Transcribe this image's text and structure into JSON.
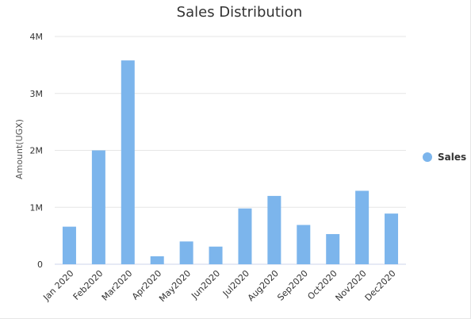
{
  "chart_data": {
    "type": "bar",
    "title": "Sales Distribution",
    "xlabel": "",
    "ylabel": "Amount(UGX)",
    "categories": [
      "Jan 2020",
      "Feb2020",
      "Mar2020",
      "Apr2020",
      "May2020",
      "Jun2020",
      "Jul2020",
      "Aug2020",
      "Sep2020",
      "Oct2020",
      "Nov2020",
      "Dec2020"
    ],
    "series": [
      {
        "name": "Sales",
        "color": "#7cb5ec",
        "values": [
          660000,
          2000000,
          3580000,
          140000,
          400000,
          310000,
          980000,
          1200000,
          690000,
          530000,
          1290000,
          890000
        ]
      }
    ],
    "ylim": [
      0,
      4000000
    ],
    "yticks": [
      {
        "value": 0,
        "label": "0"
      },
      {
        "value": 1000000,
        "label": "1M"
      },
      {
        "value": 2000000,
        "label": "2M"
      },
      {
        "value": 3000000,
        "label": "3M"
      },
      {
        "value": 4000000,
        "label": "4M"
      }
    ],
    "grid": true,
    "legend_position": "right"
  }
}
